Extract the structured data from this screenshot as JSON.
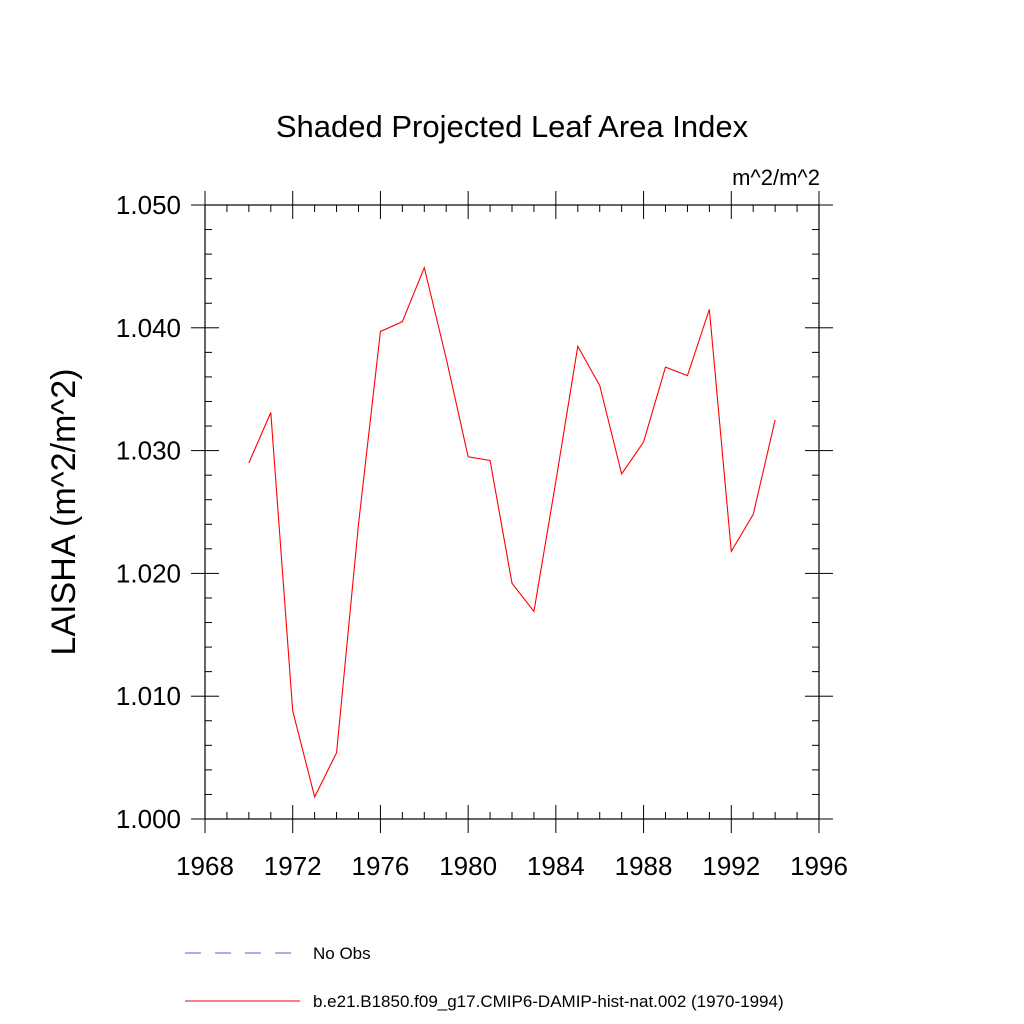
{
  "chart_data": {
    "type": "line",
    "title": "Shaded Projected Leaf Area Index",
    "units": "m^2/m^2",
    "xlabel": "",
    "ylabel": "LAISHA  (m^2/m^2)",
    "xlim": [
      1968,
      1996
    ],
    "ylim": [
      1.0,
      1.05
    ],
    "x_ticks": [
      "1968",
      "1972",
      "1976",
      "1980",
      "1984",
      "1988",
      "1992",
      "1996"
    ],
    "y_ticks": [
      "1.000",
      "1.010",
      "1.020",
      "1.030",
      "1.040",
      "1.050"
    ],
    "grid": false,
    "legend_position": "bottom",
    "legend": [
      {
        "name": "No Obs",
        "color": "#6a5acd",
        "style": "dashed"
      },
      {
        "name": "b.e21.B1850.f09_g17.CMIP6-DAMIP-hist-nat.002 (1970-1994)",
        "color": "#ff0000",
        "style": "solid"
      }
    ],
    "series": [
      {
        "name": "b.e21.B1850.f09_g17.CMIP6-DAMIP-hist-nat.002 (1970-1994)",
        "color": "#ff0000",
        "x": [
          1970,
          1971,
          1972,
          1973,
          1974,
          1975,
          1976,
          1977,
          1978,
          1979,
          1980,
          1981,
          1982,
          1983,
          1984,
          1985,
          1986,
          1987,
          1988,
          1989,
          1990,
          1991,
          1992,
          1993,
          1994
        ],
        "y": [
          1.029,
          1.0331,
          1.0088,
          1.0018,
          1.0054,
          1.024,
          1.0397,
          1.0405,
          1.0449,
          1.0375,
          1.0295,
          1.0292,
          1.0192,
          1.0169,
          1.0275,
          1.0385,
          1.0353,
          1.0281,
          1.0307,
          1.0368,
          1.0361,
          1.0415,
          1.0218,
          1.0248,
          1.0325
        ]
      }
    ]
  }
}
